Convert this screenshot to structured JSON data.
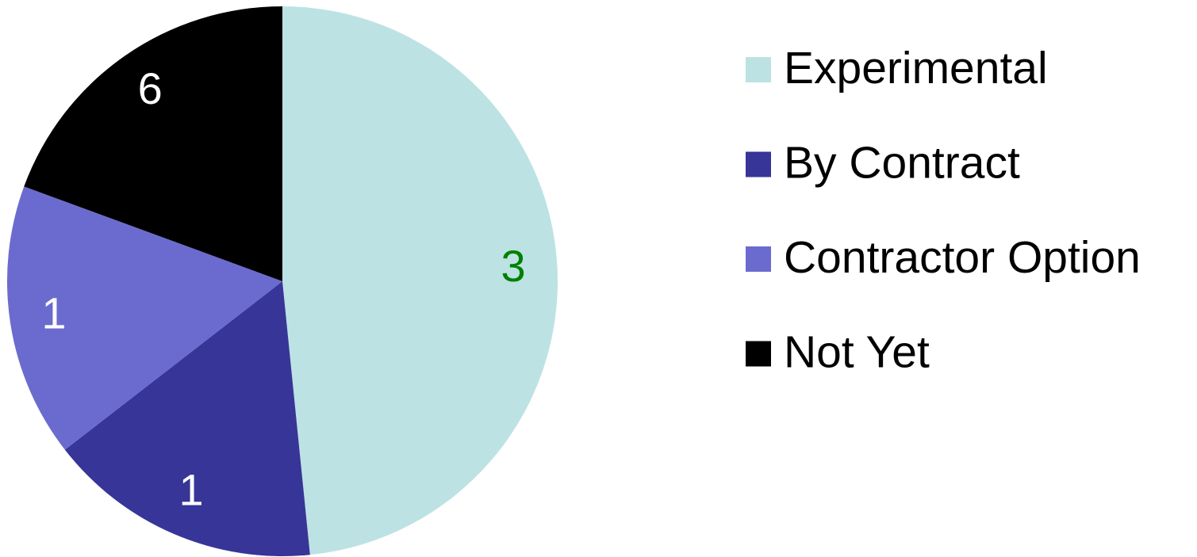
{
  "chart_data": {
    "type": "pie",
    "categories": [
      "Experimental",
      "By Contract",
      "Contractor Option",
      "Not Yet"
    ],
    "values": [
      48.4,
      16.1,
      16.1,
      19.4
    ],
    "labels": [
      "3",
      "1",
      "1",
      "6"
    ],
    "colors": [
      "#bde2e3",
      "#373598",
      "#6b6bcf",
      "#000000"
    ],
    "label_colors": [
      "#008000",
      "#ffffff",
      "#ffffff",
      "#ffffff"
    ],
    "legend": "right"
  }
}
